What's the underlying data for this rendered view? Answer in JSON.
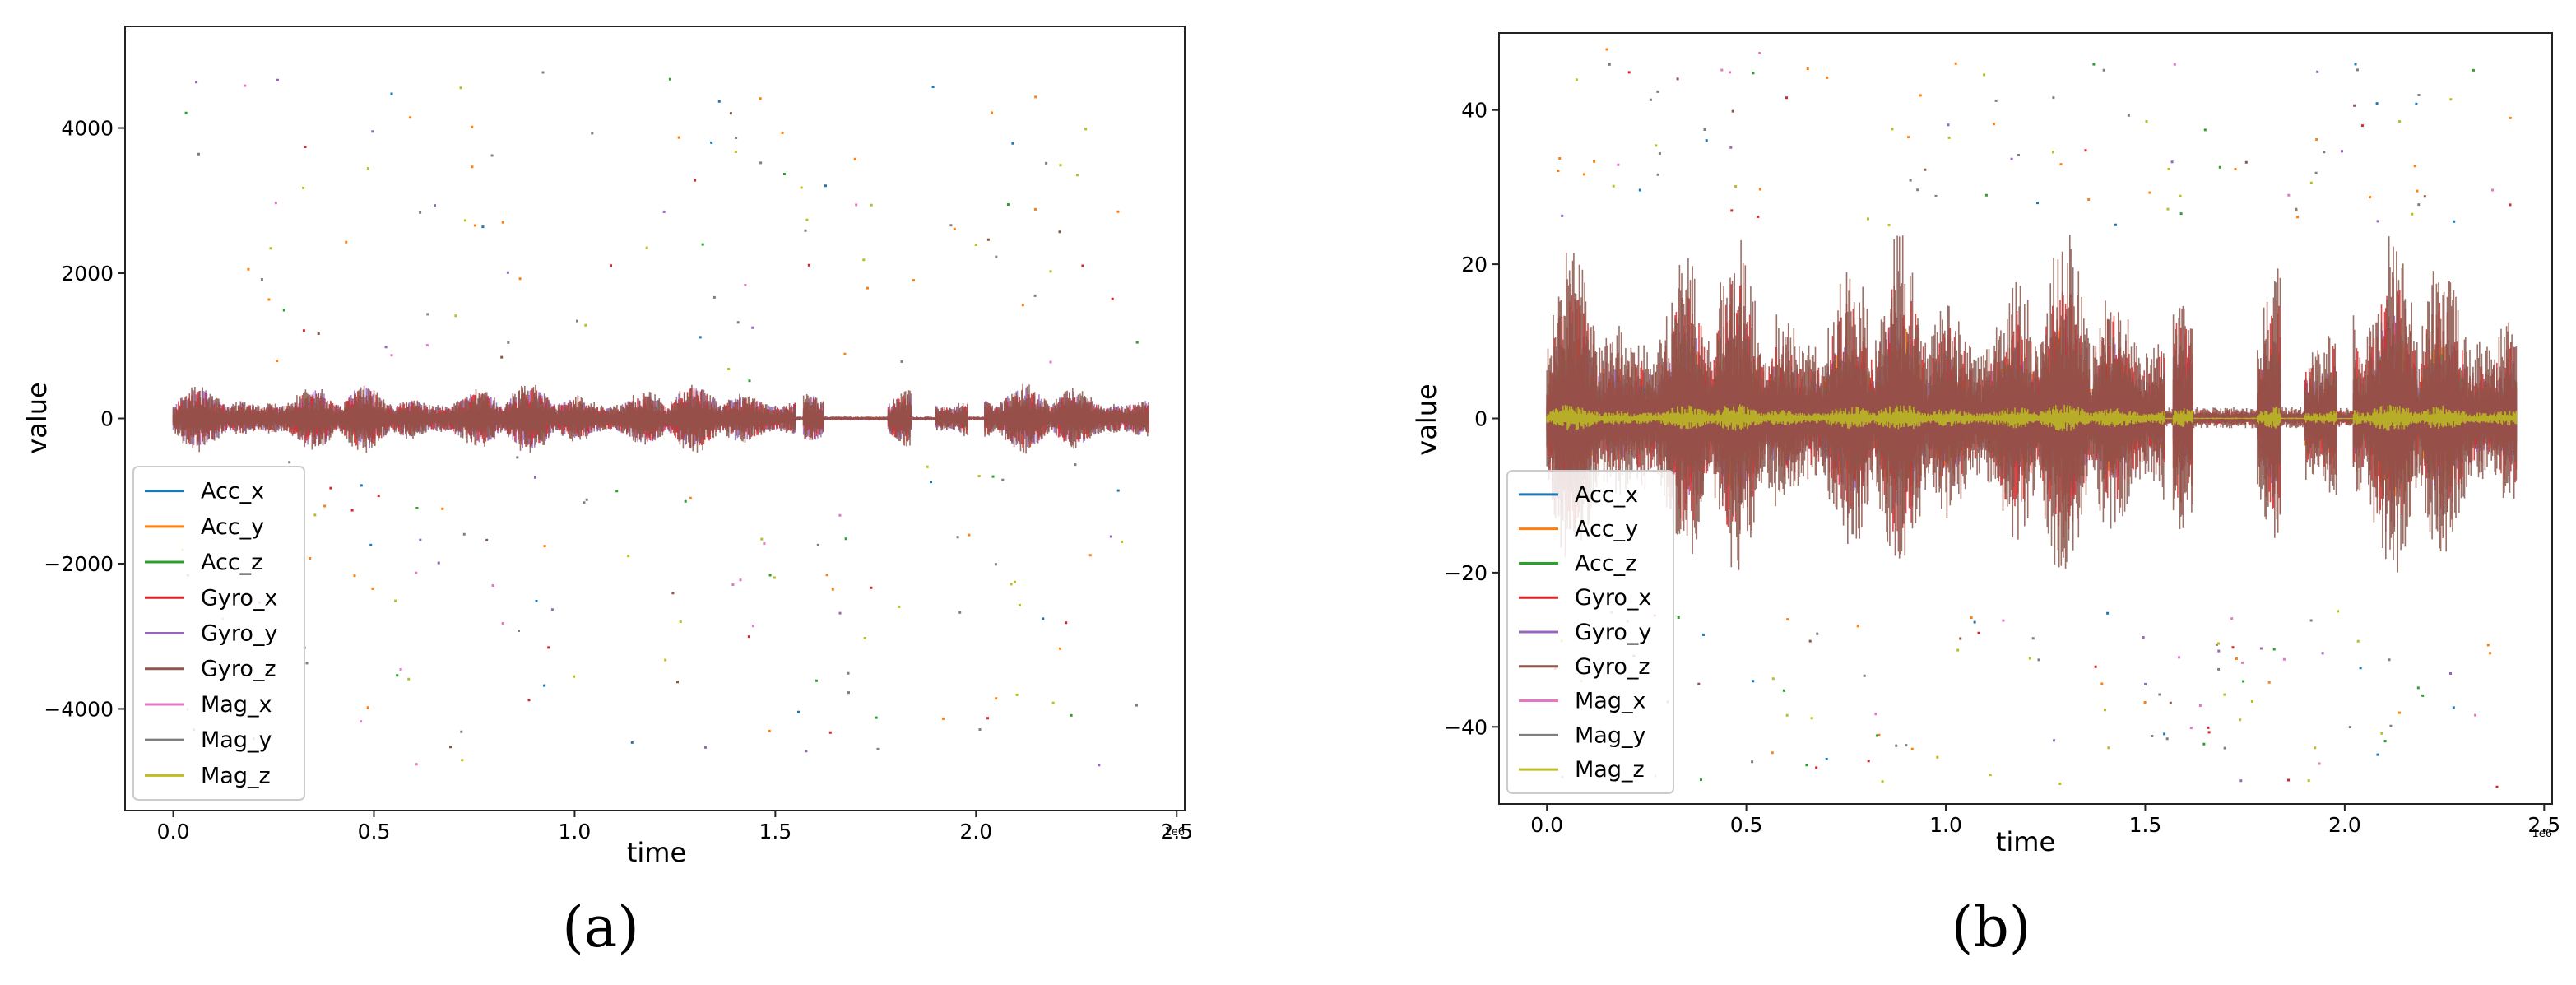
{
  "chart_data": [
    {
      "panel_label": "(a)",
      "type": "line",
      "xlabel": "time",
      "ylabel": "value",
      "x_offset_label": "1e6",
      "xlim": [
        -0.12,
        2.52
      ],
      "ylim": [
        -5400,
        5400
      ],
      "x_ticks": [
        0.0,
        0.5,
        1.0,
        1.5,
        2.0,
        2.5
      ],
      "x_tick_labels": [
        "0.0",
        "0.5",
        "1.0",
        "1.5",
        "2.0",
        "2.5"
      ],
      "y_ticks": [
        4000,
        2000,
        0,
        -2000,
        -4000
      ],
      "y_tick_labels": [
        "4000",
        "2000",
        "0",
        "−2000",
        "−4000"
      ],
      "x_data_range": [
        0.0,
        2.43
      ],
      "band_limit": 500,
      "outlier_limit": 4800,
      "legend_position": "lower-left",
      "series": [
        {
          "name": "Acc_x",
          "color": "#1f77b4"
        },
        {
          "name": "Acc_y",
          "color": "#ff7f0e"
        },
        {
          "name": "Acc_z",
          "color": "#2ca02c"
        },
        {
          "name": "Gyro_x",
          "color": "#d62728"
        },
        {
          "name": "Gyro_y",
          "color": "#9467bd"
        },
        {
          "name": "Gyro_z",
          "color": "#8c564b"
        },
        {
          "name": "Mag_x",
          "color": "#e377c2"
        },
        {
          "name": "Mag_y",
          "color": "#7f7f7f"
        },
        {
          "name": "Mag_z",
          "color": "#bcbd22"
        }
      ]
    },
    {
      "panel_label": "(b)",
      "type": "line",
      "xlabel": "time",
      "ylabel": "value",
      "x_offset_label": "1e6",
      "xlim": [
        -0.12,
        2.52
      ],
      "ylim": [
        -50,
        50
      ],
      "x_ticks": [
        0.0,
        0.5,
        1.0,
        1.5,
        2.0,
        2.5
      ],
      "x_tick_labels": [
        "0.0",
        "0.5",
        "1.0",
        "1.5",
        "2.0",
        "2.5"
      ],
      "y_ticks": [
        40,
        20,
        0,
        -20,
        -40
      ],
      "y_tick_labels": [
        "40",
        "20",
        "0",
        "−20",
        "−40"
      ],
      "x_data_range": [
        0.0,
        2.43
      ],
      "band_limit": 25,
      "outlier_limit": 48,
      "legend_position": "lower-left",
      "series": [
        {
          "name": "Acc_x",
          "color": "#1f77b4"
        },
        {
          "name": "Acc_y",
          "color": "#ff7f0e"
        },
        {
          "name": "Acc_z",
          "color": "#2ca02c"
        },
        {
          "name": "Gyro_x",
          "color": "#d62728"
        },
        {
          "name": "Gyro_y",
          "color": "#9467bd"
        },
        {
          "name": "Gyro_z",
          "color": "#8c564b"
        },
        {
          "name": "Mag_x",
          "color": "#e377c2"
        },
        {
          "name": "Mag_y",
          "color": "#7f7f7f"
        },
        {
          "name": "Mag_z",
          "color": "#bcbd22"
        }
      ]
    }
  ]
}
